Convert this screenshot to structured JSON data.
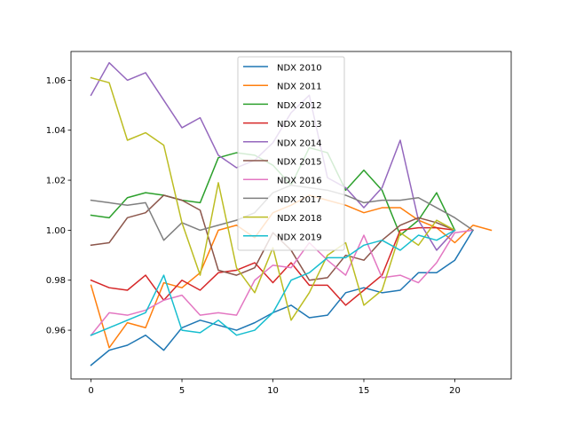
{
  "chart_data": {
    "type": "line",
    "title": "",
    "xlabel": "",
    "ylabel": "",
    "xlim": [
      -1.1,
      23.1
    ],
    "ylim": [
      0.9405,
      1.0715
    ],
    "xticks": [
      0,
      5,
      10,
      15,
      20
    ],
    "yticks": [
      0.96,
      0.98,
      1.0,
      1.02,
      1.04,
      1.06
    ],
    "ytick_labels": [
      "0.96",
      "0.98",
      "1.00",
      "1.02",
      "1.04",
      "1.06"
    ],
    "grid": false,
    "legend_position": "top-center",
    "series": [
      {
        "name": "NDX 2010",
        "color": "#1f77b4",
        "values": [
          0.946,
          0.952,
          0.954,
          0.958,
          0.952,
          0.961,
          0.964,
          0.962,
          0.96,
          0.963,
          0.967,
          0.97,
          0.965,
          0.966,
          0.975,
          0.977,
          0.975,
          0.976,
          0.983,
          0.983,
          0.988,
          1.0
        ]
      },
      {
        "name": "NDX 2011",
        "color": "#ff7f0e",
        "values": [
          0.978,
          0.953,
          0.963,
          0.961,
          0.979,
          0.977,
          0.983,
          1.0,
          1.002,
          0.997,
          1.007,
          1.01,
          1.014,
          1.012,
          1.01,
          1.007,
          1.009,
          1.009,
          1.004,
          1.001,
          0.995,
          1.002,
          1.0
        ]
      },
      {
        "name": "NDX 2012",
        "color": "#2ca02c",
        "values": [
          1.006,
          1.005,
          1.013,
          1.015,
          1.014,
          1.012,
          1.011,
          1.029,
          1.031,
          1.03,
          1.026,
          1.018,
          1.033,
          1.031,
          1.016,
          1.024,
          1.016,
          0.998,
          1.004,
          1.015,
          1.0
        ]
      },
      {
        "name": "NDX 2013",
        "color": "#d62728",
        "values": [
          0.98,
          0.977,
          0.976,
          0.982,
          0.972,
          0.98,
          0.976,
          0.983,
          0.984,
          0.987,
          0.979,
          0.987,
          0.978,
          0.978,
          0.97,
          0.976,
          0.982,
          1.0,
          1.001,
          1.001,
          1.0
        ]
      },
      {
        "name": "NDX 2014",
        "color": "#9467bd",
        "values": [
          1.054,
          1.067,
          1.06,
          1.063,
          1.052,
          1.041,
          1.045,
          1.03,
          1.025,
          1.028,
          1.035,
          1.047,
          1.054,
          1.021,
          1.017,
          1.009,
          1.017,
          1.036,
          1.004,
          0.992,
          1.0
        ]
      },
      {
        "name": "NDX 2015",
        "color": "#8c564b",
        "values": [
          0.994,
          0.995,
          1.005,
          1.007,
          1.014,
          1.012,
          1.008,
          0.984,
          0.982,
          0.985,
          0.999,
          0.992,
          0.98,
          0.981,
          0.99,
          0.988,
          0.996,
          1.002,
          1.005,
          1.003,
          1.0
        ]
      },
      {
        "name": "NDX 2016",
        "color": "#e377c2",
        "values": [
          0.958,
          0.967,
          0.966,
          0.968,
          0.972,
          0.974,
          0.966,
          0.967,
          0.966,
          0.98,
          0.986,
          0.985,
          0.995,
          0.988,
          0.982,
          0.998,
          0.981,
          0.982,
          0.979,
          0.987,
          0.999,
          1.0
        ]
      },
      {
        "name": "NDX 2017",
        "color": "#7f7f7f",
        "values": [
          1.012,
          1.011,
          1.01,
          1.011,
          0.996,
          1.003,
          1.0,
          1.002,
          1.004,
          1.007,
          1.015,
          1.018,
          1.017,
          1.016,
          1.014,
          1.011,
          1.012,
          1.012,
          1.013,
          1.009,
          1.005,
          1.0
        ]
      },
      {
        "name": "NDX 2018",
        "color": "#bcbd22",
        "values": [
          1.061,
          1.059,
          1.036,
          1.039,
          1.034,
          1.003,
          0.982,
          1.019,
          0.985,
          0.975,
          0.993,
          0.964,
          0.975,
          0.99,
          0.995,
          0.97,
          0.976,
          0.999,
          0.994,
          1.004,
          1.0
        ]
      },
      {
        "name": "NDX 2019",
        "color": "#17becf",
        "values": [
          0.958,
          0.961,
          0.964,
          0.967,
          0.982,
          0.96,
          0.959,
          0.964,
          0.958,
          0.96,
          0.967,
          0.98,
          0.983,
          0.989,
          0.989,
          0.994,
          0.996,
          0.992,
          0.998,
          0.996,
          1.0
        ]
      }
    ]
  }
}
